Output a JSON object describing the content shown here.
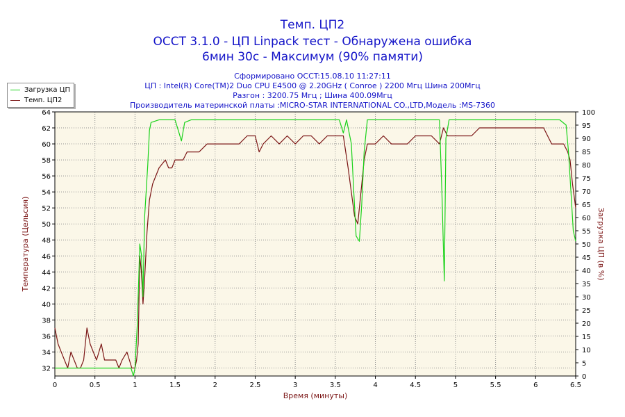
{
  "header": {
    "title1": "Темп. ЦП2",
    "title2": "OCCT 3.1.0 - ЦП Linpack тест - Обнаружена ошибка",
    "title3": "6мин 30с - Максимум (90% памяти)",
    "info1": "Сформировано OCCT:15.08.10 11:27:11",
    "info2": "ЦП : Intel(R) Core(TM)2 Duo CPU E4500 @ 2.20GHz ( Conroe ) 2200 Мгц Шина 200Мгц",
    "info3": "Разгон : 3200.75 Мгц ; Шина 400.09Мгц",
    "info4": "Производитель материнской платы :MICRO-STAR INTERNATIONAL CO.,LTD,Модель :MS-7360"
  },
  "legend": {
    "load_label": "Загрузка ЦП",
    "temp_label": "Темп. ЦП2"
  },
  "colors": {
    "plot_bg": "#fbf7e8",
    "grid": "#909090",
    "load": "#19d219",
    "temp": "#7a1414",
    "title": "#1414c8",
    "axis_label": "#7a1414"
  },
  "chart_data": {
    "type": "line",
    "xlabel": "Время (минуты)",
    "ylabel": "Температура (Цельсия)",
    "y2label": "Загрузка ЦП (в %)",
    "xlim": [
      0,
      6.5
    ],
    "ylim": [
      31,
      64
    ],
    "y2lim": [
      0,
      100
    ],
    "x_ticks": [
      "0",
      "0.5",
      "1",
      "1.5",
      "2",
      "2.5",
      "3",
      "3.5",
      "4",
      "4.5",
      "5",
      "5.5",
      "6",
      "6.5"
    ],
    "y_ticks": [
      "32",
      "34",
      "36",
      "38",
      "40",
      "42",
      "44",
      "46",
      "48",
      "50",
      "52",
      "54",
      "56",
      "58",
      "60",
      "62",
      "64"
    ],
    "y2_ticks": [
      "0",
      "5",
      "10",
      "15",
      "20",
      "25",
      "30",
      "35",
      "40",
      "45",
      "50",
      "55",
      "60",
      "65",
      "70",
      "75",
      "80",
      "85",
      "90",
      "95",
      "100"
    ],
    "grid": true,
    "series": [
      {
        "name": "Темп. ЦП2",
        "axis": "left",
        "points": [
          [
            0,
            37
          ],
          [
            0.04,
            35
          ],
          [
            0.08,
            34
          ],
          [
            0.12,
            33
          ],
          [
            0.16,
            32
          ],
          [
            0.2,
            34
          ],
          [
            0.24,
            33
          ],
          [
            0.28,
            32
          ],
          [
            0.32,
            32
          ],
          [
            0.36,
            33
          ],
          [
            0.4,
            37
          ],
          [
            0.44,
            35
          ],
          [
            0.48,
            34
          ],
          [
            0.52,
            33
          ],
          [
            0.58,
            35
          ],
          [
            0.62,
            33
          ],
          [
            0.7,
            33
          ],
          [
            0.76,
            33
          ],
          [
            0.8,
            32
          ],
          [
            0.84,
            33
          ],
          [
            0.9,
            34
          ],
          [
            0.93,
            33
          ],
          [
            0.96,
            32
          ],
          [
            1.0,
            32
          ],
          [
            1.02,
            33
          ],
          [
            1.04,
            35
          ],
          [
            1.06,
            46
          ],
          [
            1.08,
            44
          ],
          [
            1.1,
            40
          ],
          [
            1.12,
            43
          ],
          [
            1.15,
            49
          ],
          [
            1.18,
            53
          ],
          [
            1.22,
            55
          ],
          [
            1.26,
            56
          ],
          [
            1.3,
            57
          ],
          [
            1.34,
            57.5
          ],
          [
            1.38,
            58
          ],
          [
            1.42,
            57
          ],
          [
            1.46,
            57
          ],
          [
            1.5,
            58
          ],
          [
            1.55,
            58
          ],
          [
            1.6,
            58
          ],
          [
            1.65,
            59
          ],
          [
            1.7,
            59
          ],
          [
            1.8,
            59
          ],
          [
            1.9,
            60
          ],
          [
            2.0,
            60
          ],
          [
            2.1,
            60
          ],
          [
            2.2,
            60
          ],
          [
            2.3,
            60
          ],
          [
            2.4,
            61
          ],
          [
            2.5,
            61
          ],
          [
            2.55,
            59
          ],
          [
            2.6,
            60
          ],
          [
            2.7,
            61
          ],
          [
            2.8,
            60
          ],
          [
            2.9,
            61
          ],
          [
            3.0,
            60
          ],
          [
            3.1,
            61
          ],
          [
            3.2,
            61
          ],
          [
            3.3,
            60
          ],
          [
            3.4,
            61
          ],
          [
            3.5,
            61
          ],
          [
            3.6,
            61
          ],
          [
            3.66,
            57
          ],
          [
            3.7,
            54
          ],
          [
            3.74,
            51
          ],
          [
            3.78,
            50
          ],
          [
            3.82,
            54
          ],
          [
            3.86,
            58
          ],
          [
            3.9,
            60
          ],
          [
            4.0,
            60
          ],
          [
            4.1,
            61
          ],
          [
            4.2,
            60
          ],
          [
            4.3,
            60
          ],
          [
            4.4,
            60
          ],
          [
            4.5,
            61
          ],
          [
            4.6,
            61
          ],
          [
            4.7,
            61
          ],
          [
            4.8,
            60
          ],
          [
            4.85,
            62
          ],
          [
            4.9,
            61
          ],
          [
            5.0,
            61
          ],
          [
            5.1,
            61
          ],
          [
            5.2,
            61
          ],
          [
            5.3,
            62
          ],
          [
            5.4,
            62
          ],
          [
            5.5,
            62
          ],
          [
            5.6,
            62
          ],
          [
            5.7,
            62
          ],
          [
            5.8,
            62
          ],
          [
            5.9,
            62
          ],
          [
            6.0,
            62
          ],
          [
            6.1,
            62
          ],
          [
            6.2,
            60
          ],
          [
            6.3,
            60
          ],
          [
            6.35,
            60
          ],
          [
            6.4,
            59
          ],
          [
            6.43,
            58
          ],
          [
            6.46,
            55
          ],
          [
            6.5,
            52
          ]
        ]
      },
      {
        "name": "Загрузка ЦП",
        "axis": "right",
        "points": [
          [
            0,
            3
          ],
          [
            0.3,
            3
          ],
          [
            0.6,
            3
          ],
          [
            0.95,
            3
          ],
          [
            0.98,
            0
          ],
          [
            1.0,
            3
          ],
          [
            1.03,
            20
          ],
          [
            1.06,
            50
          ],
          [
            1.08,
            46
          ],
          [
            1.1,
            30
          ],
          [
            1.12,
            60
          ],
          [
            1.14,
            70
          ],
          [
            1.16,
            80
          ],
          [
            1.18,
            93
          ],
          [
            1.2,
            96
          ],
          [
            1.3,
            97
          ],
          [
            1.4,
            97
          ],
          [
            1.5,
            97
          ],
          [
            1.54,
            93
          ],
          [
            1.58,
            89
          ],
          [
            1.62,
            96
          ],
          [
            1.7,
            97
          ],
          [
            1.8,
            97
          ],
          [
            2.0,
            97
          ],
          [
            2.2,
            97
          ],
          [
            2.4,
            97
          ],
          [
            2.6,
            97
          ],
          [
            2.8,
            97
          ],
          [
            3.0,
            97
          ],
          [
            3.2,
            97
          ],
          [
            3.4,
            97
          ],
          [
            3.55,
            97
          ],
          [
            3.6,
            92
          ],
          [
            3.64,
            97
          ],
          [
            3.7,
            88
          ],
          [
            3.73,
            70
          ],
          [
            3.76,
            53
          ],
          [
            3.8,
            51
          ],
          [
            3.83,
            65
          ],
          [
            3.86,
            85
          ],
          [
            3.9,
            97
          ],
          [
            4.0,
            97
          ],
          [
            4.2,
            97
          ],
          [
            4.4,
            97
          ],
          [
            4.6,
            97
          ],
          [
            4.8,
            97
          ],
          [
            4.83,
            70
          ],
          [
            4.86,
            36
          ],
          [
            4.88,
            90
          ],
          [
            4.92,
            97
          ],
          [
            5.1,
            97
          ],
          [
            5.3,
            97
          ],
          [
            5.5,
            97
          ],
          [
            5.7,
            97
          ],
          [
            5.9,
            97
          ],
          [
            6.1,
            97
          ],
          [
            6.3,
            97
          ],
          [
            6.38,
            95
          ],
          [
            6.41,
            85
          ],
          [
            6.44,
            70
          ],
          [
            6.47,
            55
          ],
          [
            6.5,
            51
          ]
        ]
      }
    ]
  }
}
